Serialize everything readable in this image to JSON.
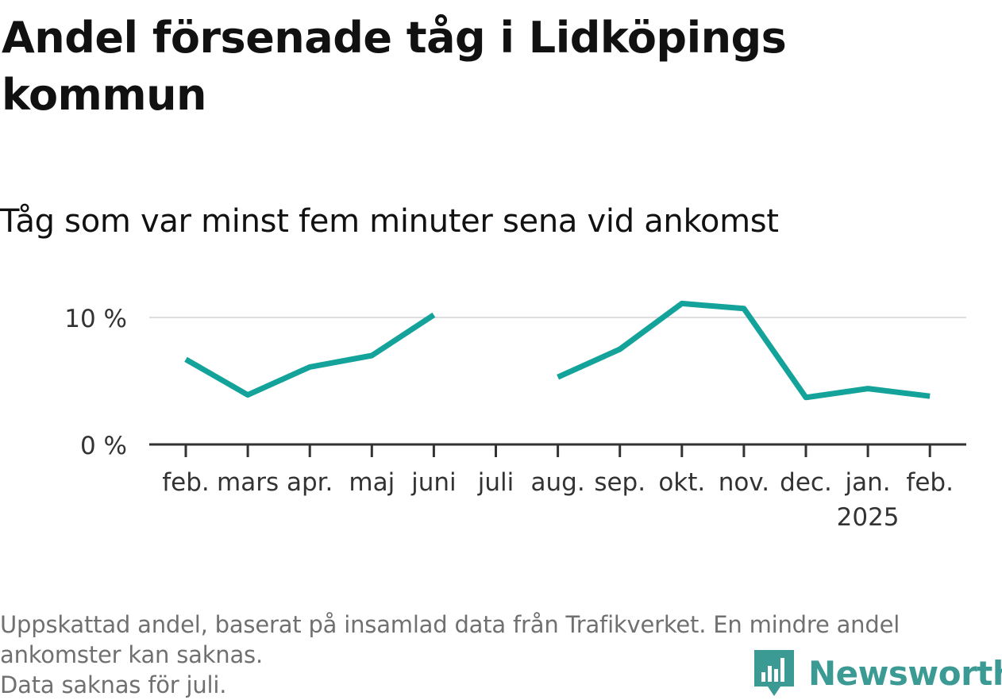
{
  "title": "Andel försenade tåg i Lidköpings kommun",
  "subtitle": "Tåg som var minst fem minuter sena vid ankomst",
  "footnote": [
    "Uppskattad andel, baserat på insamlad data från Trafikverket. En mindre andel",
    "ankomster kan saknas.",
    "Data saknas för juli."
  ],
  "logo": {
    "text": "Newsworthy",
    "icon": "bar-chart-speech-bubble-icon"
  },
  "colors": {
    "line": "#13a39a",
    "grid": "#dddddd",
    "axis": "#333333",
    "logo": "#3c9a95"
  },
  "chart_data": {
    "type": "line",
    "categories": [
      "feb.",
      "mars",
      "apr.",
      "maj",
      "juni",
      "juli",
      "aug.",
      "sep.",
      "okt.",
      "nov.",
      "dec.",
      "jan.",
      "feb."
    ],
    "year_labels": [
      "",
      "",
      "",
      "",
      "",
      "",
      "",
      "",
      "",
      "",
      "",
      "2025",
      ""
    ],
    "series": [
      {
        "values": [
          6.7,
          3.9,
          6.1,
          7.0,
          10.2,
          null,
          5.3,
          7.5,
          11.1,
          10.7,
          3.7,
          4.4,
          3.8
        ]
      }
    ],
    "y_ticks": [
      0,
      10
    ],
    "y_tick_labels": [
      "0 %",
      "10 %"
    ],
    "ylim": [
      0,
      10
    ],
    "grid": true,
    "xlabel": "",
    "ylabel": ""
  }
}
